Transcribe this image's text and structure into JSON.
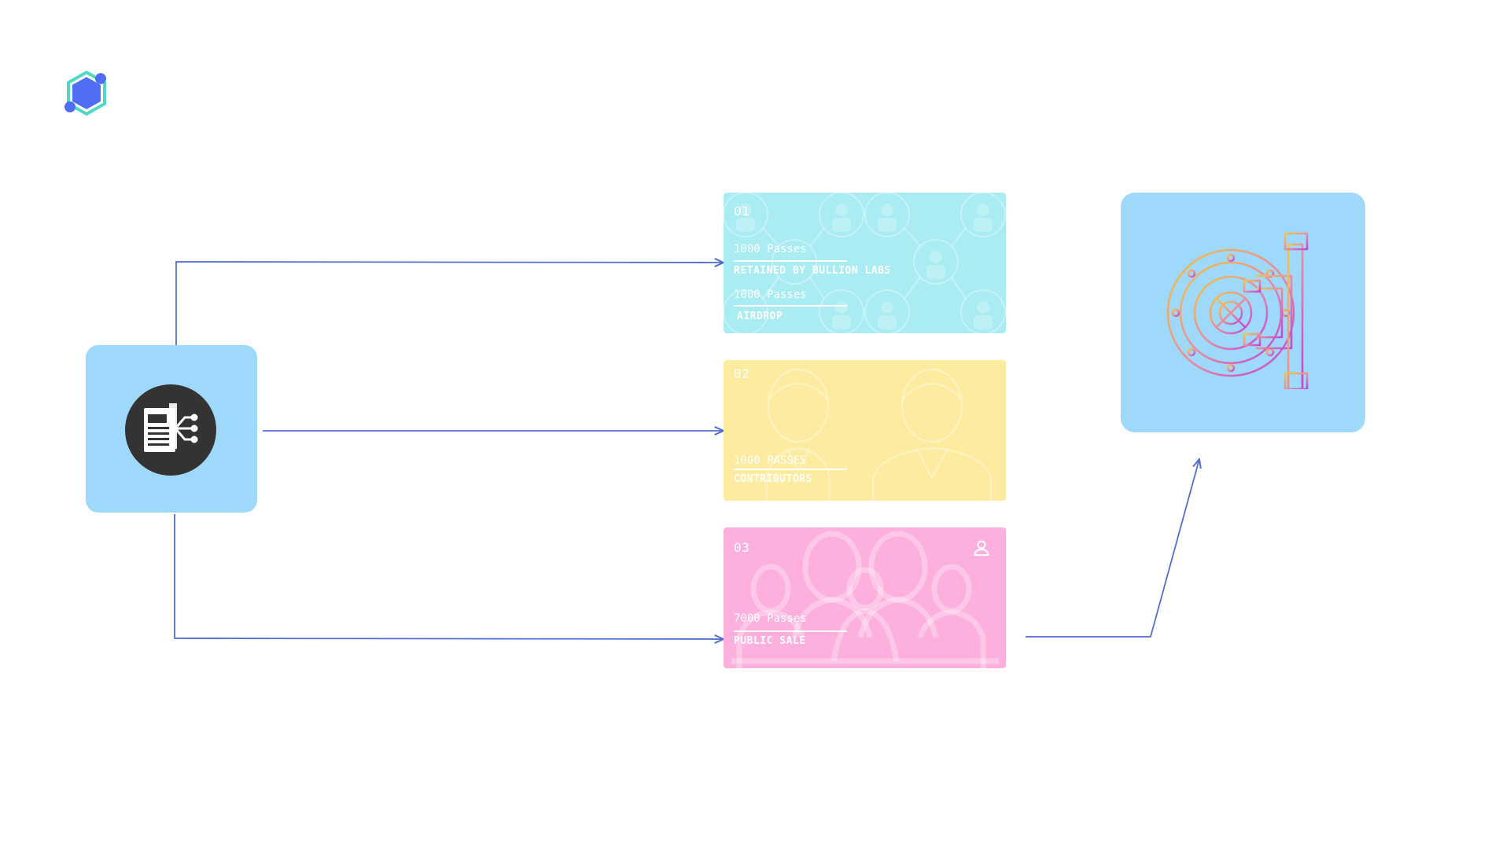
{
  "diagram": {
    "colors": {
      "connector": "#4f6fd0",
      "source_box": "#9ed9fb",
      "card_1": "#a9ecf1",
      "card_2": "#fdec9f",
      "card_3": "#fdb0dd",
      "vault_box": "#9ed9fb"
    },
    "logo": {
      "icon": "hexagon-network-logo-icon"
    },
    "source": {
      "icon": "document-distribution-icon"
    },
    "cards": [
      {
        "number": "01",
        "lines": [
          {
            "count": "1000 Passes",
            "label": "RETAINED BY BULLION LABS"
          },
          {
            "count": "1000 Passes",
            "label": "AIRDROP"
          }
        ],
        "icon": "network-people-pattern-icon"
      },
      {
        "number": "02",
        "lines": [
          {
            "count": "1000 PASSES",
            "label": "CONTRIBUTORS"
          }
        ],
        "icon": "business-people-icon"
      },
      {
        "number": "03",
        "lines": [
          {
            "count": "7000 Passes",
            "label": "PUBLIC SALE"
          }
        ],
        "icon": "crowd-people-icon"
      }
    ],
    "vault": {
      "icon": "vault-door-icon"
    }
  }
}
